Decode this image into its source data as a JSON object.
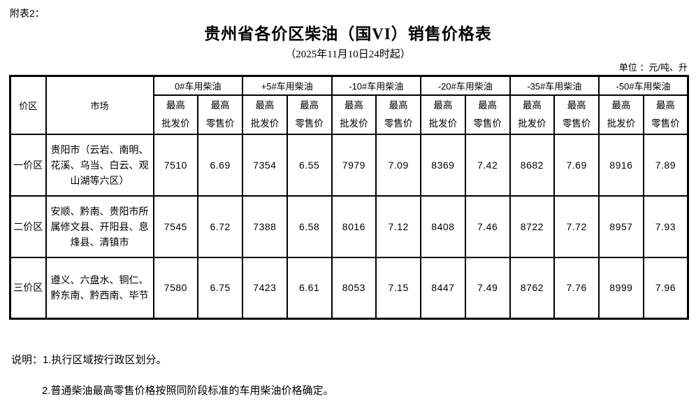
{
  "page": {
    "annotation": "附表2：",
    "title": "贵州省各价区柴油（国VI）销售价格表",
    "subtitle": "（2025年11月10日24时起）",
    "unit_label": "单位 ：元/吨、升"
  },
  "colors": {
    "text": "#000000",
    "background": "#ffffff",
    "border": "#000000"
  },
  "table": {
    "corner_headers": {
      "zone": "价区",
      "market": "市场"
    },
    "product_groups": [
      "0#车用柴油",
      "+5#车用柴油",
      "-10#车用柴油",
      "-20#车用柴油",
      "-35#车用柴油",
      "-50#车用柴油"
    ],
    "sub_headers": {
      "wholesale": [
        "最高",
        "批发价"
      ],
      "retail": [
        "最高",
        "零售价"
      ]
    },
    "rows": [
      {
        "zone": "一价区",
        "market": "贵阳市（云岩、南明、花溪、乌当、白云、观山湖等六区）",
        "prices": [
          "7510",
          "6.69",
          "7354",
          "6.55",
          "7979",
          "7.09",
          "8369",
          "7.42",
          "8682",
          "7.69",
          "8916",
          "7.89"
        ]
      },
      {
        "zone": "二价区",
        "market": "安顺、黔南、贵阳市所属修文县、开阳县、息烽县、清镇市",
        "prices": [
          "7545",
          "6.72",
          "7388",
          "6.58",
          "8016",
          "7.12",
          "8408",
          "7.46",
          "8722",
          "7.72",
          "8957",
          "7.93"
        ]
      },
      {
        "zone": "三价区",
        "market": "遵义、六盘水、铜仁、黔东南、黔西南、毕节",
        "prices": [
          "7580",
          "6.75",
          "7423",
          "6.61",
          "8053",
          "7.15",
          "8447",
          "7.49",
          "8762",
          "7.76",
          "8999",
          "7.96"
        ]
      }
    ]
  },
  "notes": {
    "line1": "说明：1.执行区域按行政区划分。",
    "line2": "2.普通柴油最高零售价格按照同阶段标准的车用柴油价格确定。"
  }
}
